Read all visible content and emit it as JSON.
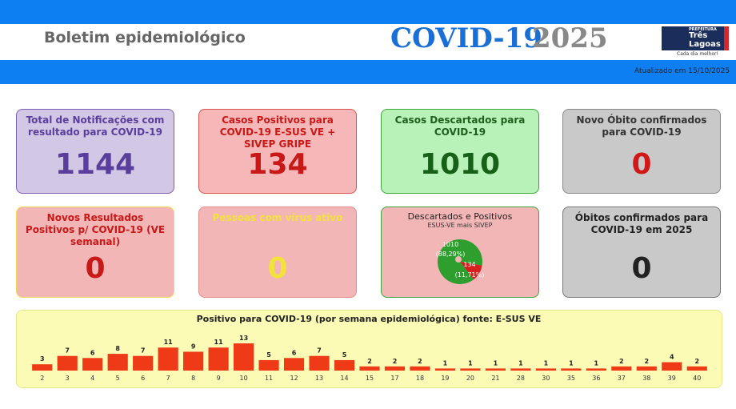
{
  "header": {
    "title": "Boletim epidemiológico",
    "covid": "COVID-19",
    "year": "2025",
    "logo_top": "PREFEITURA",
    "logo_line1": "Três",
    "logo_line2": "Lagoas",
    "logo_slogan": "Cada dia melhor!",
    "updated": "Atualizado em 15/10/2025"
  },
  "cards": [
    {
      "title": "Total de Notificações com resultado para COVID-19",
      "value": 1144
    },
    {
      "title": "Casos Positivos para COVID-19 E-SUS VE + SIVEP GRIPE",
      "value": 134
    },
    {
      "title": "Casos Descartados para COVID-19",
      "value": 1010
    },
    {
      "title": "Novo Óbito confirmados para COVID-19",
      "value": 0
    },
    {
      "title": "Novos Resultados Positivos p/ COVID-19 (VE semanal)",
      "value": 0
    },
    {
      "title": "Pessoas com vírus ativo",
      "value": 0
    },
    {
      "title": "Óbitos confirmados para COVID-19 em 2025",
      "value": 0
    }
  ],
  "chart_data": [
    {
      "type": "pie",
      "title": "Descartados e Positivos",
      "subtitle": "ESUS-VE mais SIVEP",
      "values": [
        1010,
        134
      ],
      "value_labels": [
        "(88,29%)",
        "(11,71%)"
      ],
      "colors": [
        "#2e9e2e",
        "#d62020"
      ]
    },
    {
      "type": "bar",
      "title": "Positivo para COVID-19 (por semana epidemiológica) fonte: E-SUS VE",
      "categories": [
        "2",
        "3",
        "4",
        "5",
        "6",
        "7",
        "8",
        "9",
        "10",
        "11",
        "12",
        "13",
        "14",
        "15",
        "17",
        "18",
        "19",
        "20",
        "21",
        "28",
        "30",
        "35",
        "36",
        "37",
        "38",
        "39",
        "40"
      ],
      "values": [
        3,
        7,
        6,
        8,
        7,
        11,
        9,
        11,
        13,
        5,
        6,
        7,
        5,
        2,
        2,
        2,
        1,
        1,
        1,
        1,
        1,
        1,
        1,
        2,
        2,
        4,
        2
      ],
      "color": "#ee3a16"
    }
  ]
}
